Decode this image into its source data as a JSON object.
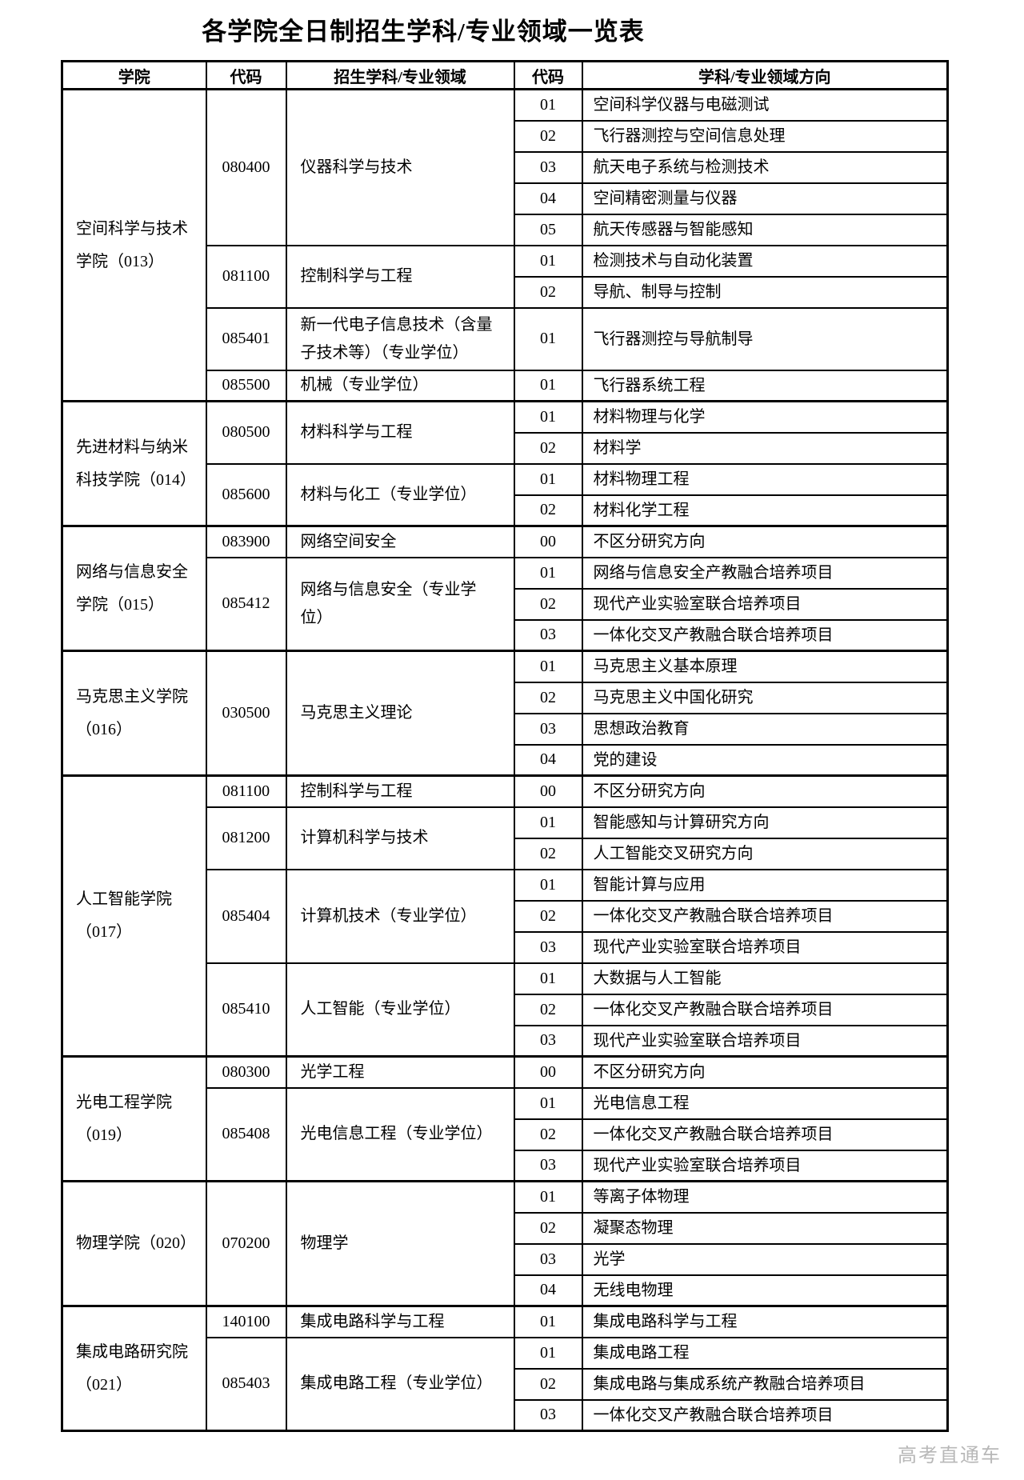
{
  "title": "各学院全日制招生学科/专业领域一览表",
  "watermark": "高考直通车",
  "table": {
    "headers": {
      "college": "学院",
      "code1": "代码",
      "program": "招生学科/专业领域",
      "code2": "代码",
      "direction": "学科/专业领域方向"
    },
    "colleges": [
      {
        "name": "空间科学与技术学院（013）",
        "programs": [
          {
            "code": "080400",
            "name": "仪器科学与技术",
            "directions": [
              {
                "code": "01",
                "name": "空间科学仪器与电磁测试"
              },
              {
                "code": "02",
                "name": "飞行器测控与空间信息处理"
              },
              {
                "code": "03",
                "name": "航天电子系统与检测技术"
              },
              {
                "code": "04",
                "name": "空间精密测量与仪器"
              },
              {
                "code": "05",
                "name": "航天传感器与智能感知"
              }
            ]
          },
          {
            "code": "081100",
            "name": "控制科学与工程",
            "directions": [
              {
                "code": "01",
                "name": "检测技术与自动化装置"
              },
              {
                "code": "02",
                "name": "导航、制导与控制"
              }
            ]
          },
          {
            "code": "085401",
            "name": "新一代电子信息技术（含量子技术等）（专业学位）",
            "directions": [
              {
                "code": "01",
                "name": "飞行器测控与导航制导"
              }
            ]
          },
          {
            "code": "085500",
            "name": "机械（专业学位）",
            "directions": [
              {
                "code": "01",
                "name": "飞行器系统工程"
              }
            ]
          }
        ]
      },
      {
        "name": "先进材料与纳米科技学院（014）",
        "programs": [
          {
            "code": "080500",
            "name": "材料科学与工程",
            "directions": [
              {
                "code": "01",
                "name": "材料物理与化学"
              },
              {
                "code": "02",
                "name": "材料学"
              }
            ]
          },
          {
            "code": "085600",
            "name": "材料与化工（专业学位）",
            "directions": [
              {
                "code": "01",
                "name": "材料物理工程"
              },
              {
                "code": "02",
                "name": "材料化学工程"
              }
            ]
          }
        ]
      },
      {
        "name": "网络与信息安全学院（015）",
        "programs": [
          {
            "code": "083900",
            "name": "网络空间安全",
            "directions": [
              {
                "code": "00",
                "name": "不区分研究方向"
              }
            ]
          },
          {
            "code": "085412",
            "name": "网络与信息安全（专业学位）",
            "directions": [
              {
                "code": "01",
                "name": "网络与信息安全产教融合培养项目"
              },
              {
                "code": "02",
                "name": "现代产业实验室联合培养项目"
              },
              {
                "code": "03",
                "name": "一体化交叉产教融合联合培养项目"
              }
            ]
          }
        ]
      },
      {
        "name": "马克思主义学院（016）",
        "programs": [
          {
            "code": "030500",
            "name": "马克思主义理论",
            "directions": [
              {
                "code": "01",
                "name": "马克思主义基本原理"
              },
              {
                "code": "02",
                "name": "马克思主义中国化研究"
              },
              {
                "code": "03",
                "name": "思想政治教育"
              },
              {
                "code": "04",
                "name": "党的建设"
              }
            ]
          }
        ]
      },
      {
        "name": "人工智能学院（017）",
        "programs": [
          {
            "code": "081100",
            "name": "控制科学与工程",
            "directions": [
              {
                "code": "00",
                "name": "不区分研究方向"
              }
            ]
          },
          {
            "code": "081200",
            "name": "计算机科学与技术",
            "directions": [
              {
                "code": "01",
                "name": "智能感知与计算研究方向"
              },
              {
                "code": "02",
                "name": "人工智能交叉研究方向"
              }
            ]
          },
          {
            "code": "085404",
            "name": "计算机技术（专业学位）",
            "directions": [
              {
                "code": "01",
                "name": "智能计算与应用"
              },
              {
                "code": "02",
                "name": "一体化交叉产教融合联合培养项目"
              },
              {
                "code": "03",
                "name": "现代产业实验室联合培养项目"
              }
            ]
          },
          {
            "code": "085410",
            "name": "人工智能（专业学位）",
            "directions": [
              {
                "code": "01",
                "name": "大数据与人工智能"
              },
              {
                "code": "02",
                "name": "一体化交叉产教融合联合培养项目"
              },
              {
                "code": "03",
                "name": "现代产业实验室联合培养项目"
              }
            ]
          }
        ]
      },
      {
        "name": "光电工程学院（019）",
        "programs": [
          {
            "code": "080300",
            "name": "光学工程",
            "directions": [
              {
                "code": "00",
                "name": "不区分研究方向"
              }
            ]
          },
          {
            "code": "085408",
            "name": "光电信息工程（专业学位）",
            "directions": [
              {
                "code": "01",
                "name": "光电信息工程"
              },
              {
                "code": "02",
                "name": "一体化交叉产教融合联合培养项目"
              },
              {
                "code": "03",
                "name": "现代产业实验室联合培养项目"
              }
            ]
          }
        ]
      },
      {
        "name": "物理学院（020）",
        "programs": [
          {
            "code": "070200",
            "name": "物理学",
            "directions": [
              {
                "code": "01",
                "name": "等离子体物理"
              },
              {
                "code": "02",
                "name": "凝聚态物理"
              },
              {
                "code": "03",
                "name": "光学"
              },
              {
                "code": "04",
                "name": "无线电物理"
              }
            ]
          }
        ]
      },
      {
        "name": "集成电路研究院（021）",
        "programs": [
          {
            "code": "140100",
            "name": "集成电路科学与工程",
            "directions": [
              {
                "code": "01",
                "name": "集成电路科学与工程"
              }
            ]
          },
          {
            "code": "085403",
            "name": "集成电路工程（专业学位）",
            "directions": [
              {
                "code": "01",
                "name": "集成电路工程"
              },
              {
                "code": "02",
                "name": "集成电路与集成系统产教融合培养项目"
              },
              {
                "code": "03",
                "name": "一体化交叉产教融合联合培养项目"
              }
            ]
          }
        ]
      }
    ]
  }
}
